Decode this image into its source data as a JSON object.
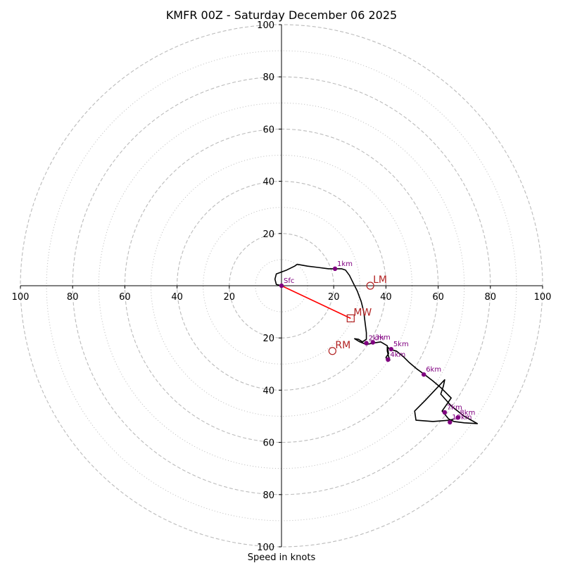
{
  "chart_data": {
    "type": "hodograph",
    "title": "KMFR 00Z - Saturday December 06 2025",
    "xlabel": "Speed in knots",
    "range": [
      -100,
      100
    ],
    "rings_major": [
      20,
      40,
      60,
      80,
      100
    ],
    "rings_minor": [
      10,
      30,
      50,
      70,
      90
    ],
    "x_ticks": [
      {
        "value": -100,
        "label": "100"
      },
      {
        "value": -80,
        "label": "80"
      },
      {
        "value": -60,
        "label": "60"
      },
      {
        "value": -40,
        "label": "40"
      },
      {
        "value": -20,
        "label": "20"
      },
      {
        "value": 20,
        "label": "20"
      },
      {
        "value": 40,
        "label": "40"
      },
      {
        "value": 60,
        "label": "60"
      },
      {
        "value": 80,
        "label": "80"
      },
      {
        "value": 100,
        "label": "100"
      }
    ],
    "y_ticks": [
      {
        "value": 100,
        "label": "100"
      },
      {
        "value": 80,
        "label": "80"
      },
      {
        "value": 60,
        "label": "60"
      },
      {
        "value": 40,
        "label": "40"
      },
      {
        "value": 20,
        "label": "20"
      },
      {
        "value": -20,
        "label": "20"
      },
      {
        "value": -40,
        "label": "40"
      },
      {
        "value": -60,
        "label": "60"
      },
      {
        "value": -80,
        "label": "80"
      },
      {
        "value": -100,
        "label": "100"
      }
    ],
    "trace": [
      [
        0,
        0
      ],
      [
        -2,
        0.5
      ],
      [
        -2.5,
        2.5
      ],
      [
        -2,
        4.5
      ],
      [
        2,
        6
      ],
      [
        5,
        7.5
      ],
      [
        6,
        8.2
      ],
      [
        10,
        7.5
      ],
      [
        14,
        7
      ],
      [
        18,
        6.5
      ],
      [
        21,
        6.5
      ],
      [
        23,
        6.5
      ],
      [
        24.5,
        6
      ],
      [
        26,
        4
      ],
      [
        27.5,
        1
      ],
      [
        29,
        -2
      ],
      [
        30.5,
        -6
      ],
      [
        31.5,
        -10
      ],
      [
        32,
        -14
      ],
      [
        32.5,
        -18
      ],
      [
        32.5,
        -20.5
      ],
      [
        31,
        -21.5
      ],
      [
        29.5,
        -20.5
      ],
      [
        28,
        -20.3
      ],
      [
        30,
        -21.5
      ],
      [
        32.5,
        -22.5
      ],
      [
        35,
        -22
      ],
      [
        38,
        -21.5
      ],
      [
        40.5,
        -23
      ],
      [
        41,
        -26
      ],
      [
        40,
        -27.5
      ],
      [
        40.5,
        -28.5
      ],
      [
        41.5,
        -28.5
      ],
      [
        41,
        -27
      ],
      [
        40.5,
        -25
      ],
      [
        40.5,
        -23.5
      ],
      [
        42,
        -24.5
      ],
      [
        44,
        -25
      ],
      [
        46.5,
        -27
      ],
      [
        49,
        -29.5
      ],
      [
        52,
        -32
      ],
      [
        54.5,
        -33.8
      ],
      [
        58,
        -36.5
      ],
      [
        61,
        -39
      ],
      [
        63,
        -41
      ],
      [
        65,
        -43
      ],
      [
        61.5,
        -48
      ],
      [
        64,
        -51
      ],
      [
        66,
        -52
      ],
      [
        70,
        -52.5
      ],
      [
        75,
        -52.8
      ],
      [
        70,
        -50
      ],
      [
        65,
        -46
      ],
      [
        61,
        -41.5
      ],
      [
        62,
        -38.5
      ],
      [
        62.5,
        -36
      ],
      [
        55,
        -44
      ],
      [
        51,
        -48
      ],
      [
        51.5,
        -51.5
      ],
      [
        58,
        -52
      ],
      [
        64.5,
        -51.5
      ],
      [
        66,
        -51
      ]
    ],
    "height_markers": [
      {
        "label": "Sfc",
        "u": 0,
        "v": 0
      },
      {
        "label": "1km",
        "u": 20.5,
        "v": 6.5
      },
      {
        "label": "2km",
        "u": 32.5,
        "v": -22
      },
      {
        "label": "3km",
        "u": 35,
        "v": -21.7
      },
      {
        "label": "4km",
        "u": 40.8,
        "v": -28.3
      },
      {
        "label": "5km",
        "u": 42,
        "v": -24.3
      },
      {
        "label": "6km",
        "u": 54.5,
        "v": -34
      },
      {
        "label": "7km",
        "u": 62.5,
        "v": -48.5
      },
      {
        "label": "8km",
        "u": 67.5,
        "v": -50.5
      },
      {
        "label": "10km",
        "u": 64.5,
        "v": -52.3
      }
    ],
    "motions": [
      {
        "label": "LM",
        "u": 34,
        "v": 0,
        "marker": "circle"
      },
      {
        "label": "MW",
        "u": 26.5,
        "v": -12.5,
        "marker": "square"
      },
      {
        "label": "RM",
        "u": 19.5,
        "v": -25,
        "marker": "circle"
      }
    ],
    "mean_wind_vector": {
      "from": [
        0,
        0
      ],
      "to": [
        26.5,
        -12.5
      ]
    },
    "colors": {
      "trace": "#000000",
      "height_marker": "#800080",
      "motion": "#b22222",
      "mean_wind_vector": "#ff0000",
      "grid": "#bbbbbb",
      "axis": "#000000"
    }
  }
}
